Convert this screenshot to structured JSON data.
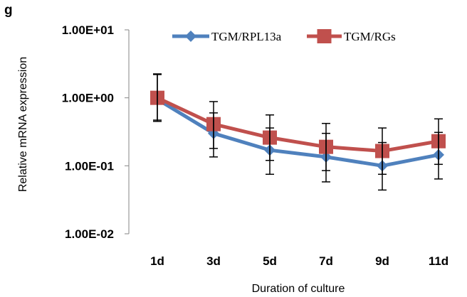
{
  "panel_label": "g",
  "chart_data": {
    "type": "line",
    "title": "",
    "xlabel": "Duration of culture",
    "ylabel": "Relative mRNA expression",
    "y_scale": "log",
    "ylim": [
      0.01,
      10
    ],
    "y_tick_labels": [
      "1.00E+01",
      "1.00E+00",
      "1.00E-01",
      "1.00E-02"
    ],
    "y_tick_values": [
      10,
      1,
      0.1,
      0.01
    ],
    "categories": [
      "1d",
      "3d",
      "5d",
      "7d",
      "9d",
      "11d"
    ],
    "legend_position": "top",
    "grid": false,
    "series": [
      {
        "name": "TGM/RPL13a",
        "color": "#4f81bd",
        "marker": "diamond",
        "values": [
          0.95,
          0.3,
          0.17,
          0.135,
          0.1,
          0.145
        ],
        "error_low": [
          0.47,
          0.135,
          0.075,
          0.058,
          0.044,
          0.064
        ],
        "error_high": [
          2.2,
          0.6,
          0.36,
          0.3,
          0.22,
          0.31
        ]
      },
      {
        "name": "TGM/RGs",
        "color": "#c0504d",
        "marker": "square",
        "values": [
          1.0,
          0.41,
          0.26,
          0.19,
          0.165,
          0.23
        ],
        "error_low": [
          0.45,
          0.18,
          0.12,
          0.085,
          0.075,
          0.105
        ],
        "error_high": [
          2.25,
          0.88,
          0.56,
          0.42,
          0.36,
          0.49
        ]
      }
    ]
  }
}
